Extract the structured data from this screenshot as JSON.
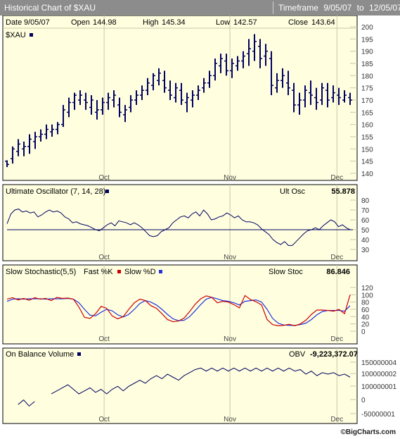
{
  "header": {
    "title": "Historical Chart of $XAU",
    "timeframe_label": "Timeframe",
    "from": "9/05/07",
    "to_word": "to",
    "to": "12/05/07"
  },
  "info": {
    "date_label": "Date",
    "date": "9/05/07",
    "open_label": "Open",
    "open": "144.98",
    "high_label": "High",
    "high": "145.34",
    "low_label": "Low",
    "low": "142.57",
    "close_label": "Close",
    "close": "143.64"
  },
  "footer": {
    "credit": "©BigCharts.com"
  },
  "colors": {
    "panel_bg": "#ffffe0",
    "ink": "#000060",
    "fast_k": "#cc0000",
    "slow_d": "#2233dd"
  },
  "chart_data": [
    {
      "type": "bar",
      "subtype": "ohlc",
      "legend": "$XAU",
      "x_ticks": [
        "Oct",
        "Nov",
        "Dec"
      ],
      "ylim": [
        140,
        200
      ],
      "y_ticks": [
        140,
        145,
        150,
        155,
        160,
        165,
        170,
        175,
        180,
        185,
        190,
        195,
        200
      ],
      "ohlc": [
        [
          144.98,
          145.34,
          142.57,
          143.64
        ],
        [
          146,
          151,
          144,
          150
        ],
        [
          149,
          154,
          147,
          152
        ],
        [
          150,
          153,
          147,
          151
        ],
        [
          151,
          156,
          148,
          154
        ],
        [
          153,
          157,
          150,
          155
        ],
        [
          155,
          158,
          153,
          156
        ],
        [
          156,
          160,
          154,
          158
        ],
        [
          157,
          160,
          155,
          158
        ],
        [
          158,
          161,
          156,
          160
        ],
        [
          160,
          168,
          159,
          166
        ],
        [
          165,
          171,
          163,
          169
        ],
        [
          169,
          173,
          166,
          172
        ],
        [
          170,
          174,
          168,
          172
        ],
        [
          170,
          173,
          166,
          169
        ],
        [
          167,
          172,
          164,
          170
        ],
        [
          165,
          170,
          162,
          166
        ],
        [
          166,
          171,
          164,
          169
        ],
        [
          169,
          173,
          166,
          171
        ],
        [
          170,
          174,
          167,
          172
        ],
        [
          168,
          171,
          163,
          165
        ],
        [
          164,
          168,
          161,
          166
        ],
        [
          167,
          172,
          165,
          170
        ],
        [
          170,
          174,
          168,
          172
        ],
        [
          172,
          176,
          170,
          174
        ],
        [
          174,
          179,
          172,
          177
        ],
        [
          176,
          181,
          174,
          180
        ],
        [
          178,
          183,
          176,
          181
        ],
        [
          178,
          182,
          173,
          175
        ],
        [
          174,
          178,
          170,
          172
        ],
        [
          171,
          177,
          169,
          175
        ],
        [
          174,
          177,
          168,
          170
        ],
        [
          169,
          173,
          165,
          171
        ],
        [
          170,
          174,
          167,
          172
        ],
        [
          172,
          176,
          170,
          174
        ],
        [
          175,
          179,
          173,
          177
        ],
        [
          177,
          182,
          175,
          180
        ],
        [
          180,
          187,
          178,
          185
        ],
        [
          184,
          189,
          181,
          187
        ],
        [
          186,
          189,
          180,
          182
        ],
        [
          182,
          187,
          179,
          185
        ],
        [
          184,
          188,
          182,
          186
        ],
        [
          186,
          190,
          183,
          188
        ],
        [
          189,
          195,
          184,
          191
        ],
        [
          190,
          197,
          186,
          194
        ],
        [
          192,
          195,
          183,
          187
        ],
        [
          188,
          193,
          184,
          190
        ],
        [
          187,
          190,
          172,
          176
        ],
        [
          175,
          181,
          173,
          178
        ],
        [
          178,
          183,
          175,
          180
        ],
        [
          177,
          182,
          172,
          175
        ],
        [
          174,
          177,
          165,
          168
        ],
        [
          168,
          173,
          164,
          170
        ],
        [
          170,
          176,
          167,
          174
        ],
        [
          173,
          178,
          168,
          172
        ],
        [
          171,
          175,
          166,
          169
        ],
        [
          170,
          177,
          168,
          175
        ],
        [
          174,
          177,
          167,
          170
        ],
        [
          171,
          176,
          169,
          173
        ],
        [
          172,
          175,
          168,
          171
        ],
        [
          170,
          174,
          169,
          172
        ],
        [
          171,
          173,
          168,
          170
        ]
      ]
    },
    {
      "type": "line",
      "title": "Ultimate Oscillator (7, 14, 28)",
      "value_label": "Ult Osc",
      "value": "55.878",
      "x_ticks": [
        "Oct",
        "Nov",
        "Dec"
      ],
      "ylim": [
        30,
        80
      ],
      "y_ticks": [
        30,
        40,
        50,
        60,
        70,
        80
      ],
      "reference_line": 50,
      "series": [
        {
          "values": [
            56,
            66,
            70,
            71,
            68,
            69,
            67,
            68,
            63,
            65,
            68,
            70,
            68,
            69,
            67,
            63,
            61,
            57,
            58,
            56,
            55,
            54,
            52,
            50,
            49,
            52,
            55,
            57,
            54,
            59,
            58,
            57,
            55,
            57,
            55,
            52,
            48,
            44,
            43,
            44,
            48,
            50,
            52,
            57,
            60,
            63,
            64,
            62,
            66,
            68,
            64,
            70,
            66,
            60,
            61,
            63,
            64,
            67,
            65,
            62,
            64,
            60,
            58,
            58,
            57,
            55,
            51,
            48,
            45,
            40,
            37,
            35,
            38,
            34,
            34,
            38,
            42,
            46,
            49,
            50,
            52,
            50,
            54,
            57,
            60,
            58,
            53,
            55,
            52,
            50
          ]
        }
      ]
    },
    {
      "type": "line",
      "title": "Slow Stochastic(5,5)",
      "legend": [
        "Fast %K",
        "Slow %D"
      ],
      "value_label": "Slow Stoc",
      "value": "86.846",
      "x_ticks": [
        "Oct",
        "Nov",
        "Dec"
      ],
      "ylim": [
        0,
        120
      ],
      "y_ticks": [
        0,
        20,
        40,
        60,
        80,
        100,
        120
      ],
      "series": [
        {
          "name": "Fast %K",
          "values": [
            88,
            92,
            86,
            90,
            85,
            92,
            88,
            90,
            84,
            93,
            90,
            91,
            88,
            66,
            38,
            35,
            48,
            68,
            63,
            42,
            34,
            40,
            60,
            78,
            88,
            84,
            70,
            63,
            48,
            32,
            26,
            28,
            36,
            54,
            74,
            89,
            97,
            93,
            78,
            82,
            80,
            73,
            64,
            98,
            87,
            81,
            72,
            32,
            18,
            15,
            16,
            19,
            15,
            20,
            30,
            46,
            58,
            58,
            57,
            55,
            60,
            48,
            100
          ]
        },
        {
          "name": "Slow %D",
          "values": [
            82,
            88,
            89,
            88,
            89,
            89,
            89,
            88,
            89,
            89,
            89,
            90,
            88,
            78,
            60,
            44,
            42,
            52,
            60,
            56,
            45,
            39,
            46,
            60,
            76,
            84,
            80,
            72,
            60,
            46,
            34,
            29,
            30,
            40,
            56,
            73,
            88,
            93,
            89,
            84,
            82,
            78,
            72,
            82,
            84,
            86,
            80,
            60,
            35,
            22,
            17,
            16,
            16,
            18,
            22,
            32,
            45,
            54,
            57,
            57,
            57,
            55,
            70
          ]
        }
      ]
    },
    {
      "type": "line",
      "title": "On Balance Volume",
      "value_label": "OBV",
      "value": "-9,223,372.07",
      "x_ticks": [
        "Oct",
        "Nov",
        "Dec"
      ],
      "y_ticks": [
        "150000004",
        "100000002",
        "100000001",
        "0",
        "-50000001"
      ],
      "series": [
        {
          "values": [
            null,
            null,
            -0.4,
            -0.1,
            -0.5,
            -0.2,
            null,
            null,
            0.3,
            0.5,
            0.7,
            0.9,
            0.6,
            0.3,
            0.5,
            0.7,
            0.4,
            0.6,
            0.3,
            0.6,
            0.8,
            0.5,
            0.8,
            1.0,
            1.2,
            1.0,
            1.3,
            1.5,
            1.3,
            1.6,
            1.4,
            1.2,
            1.5,
            1.7,
            1.9,
            2.0,
            1.8,
            2.0,
            1.8,
            2.0,
            1.8,
            2.0,
            1.8,
            2.0,
            1.8,
            2.0,
            1.8,
            2.0,
            1.8,
            2.0,
            1.8,
            2.0,
            1.8,
            1.9,
            1.6,
            1.8,
            1.5,
            1.7,
            1.6,
            1.7,
            1.5,
            1.6,
            1.4
          ]
        }
      ]
    }
  ]
}
